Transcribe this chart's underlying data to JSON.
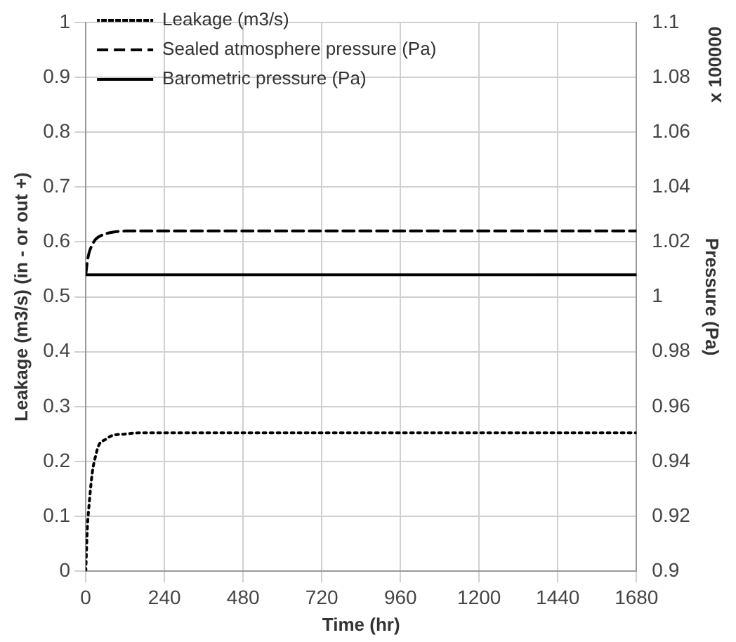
{
  "chart_data": {
    "type": "line",
    "xlabel": "Time (hr)",
    "ylabel": "Leakage (m3/s) (in - or out +)",
    "y2label": "Pressure (Pa)",
    "annotations": [
      "x 100000"
    ],
    "xlim": [
      0,
      1680
    ],
    "xticks": [
      0,
      240,
      480,
      720,
      960,
      1200,
      1440,
      1680
    ],
    "ylim": [
      0,
      1
    ],
    "yticks": [
      0,
      0.1,
      0.2,
      0.3,
      0.4,
      0.5,
      0.6,
      0.7,
      0.8,
      0.9,
      1
    ],
    "y2lim": [
      0.9,
      1.1
    ],
    "y2ticks": [
      0.9,
      0.92,
      0.94,
      0.96,
      0.98,
      1,
      1.02,
      1.04,
      1.06,
      1.08,
      1.1
    ],
    "grid": true,
    "legend": "top left",
    "marker": "none",
    "series": [
      {
        "name": "Leakage (m3/s)",
        "color": "#000000",
        "line_style": "dotted",
        "x": [
          0,
          5,
          10,
          20,
          30,
          40,
          60,
          80,
          120,
          160,
          1680
        ],
        "values": [
          0,
          0.08,
          0.12,
          0.18,
          0.21,
          0.23,
          0.24,
          0.247,
          0.25,
          0.252,
          0.252
        ]
      },
      {
        "name": "Sealed atmosphere pressure (Pa)",
        "color": "#000000",
        "line_style": "dashed",
        "axis": "y2",
        "x": [
          0,
          5,
          10,
          20,
          30,
          50,
          80,
          120,
          160,
          1680
        ],
        "values": [
          1.008,
          1.013,
          1.016,
          1.019,
          1.021,
          1.0225,
          1.0235,
          1.024,
          1.024,
          1.024
        ]
      },
      {
        "name": "Barometric pressure (Pa)",
        "color": "#000000",
        "line_style": "solid",
        "axis": "y2",
        "x": [
          0,
          1680
        ],
        "values": [
          1.008,
          1.008
        ]
      }
    ]
  }
}
